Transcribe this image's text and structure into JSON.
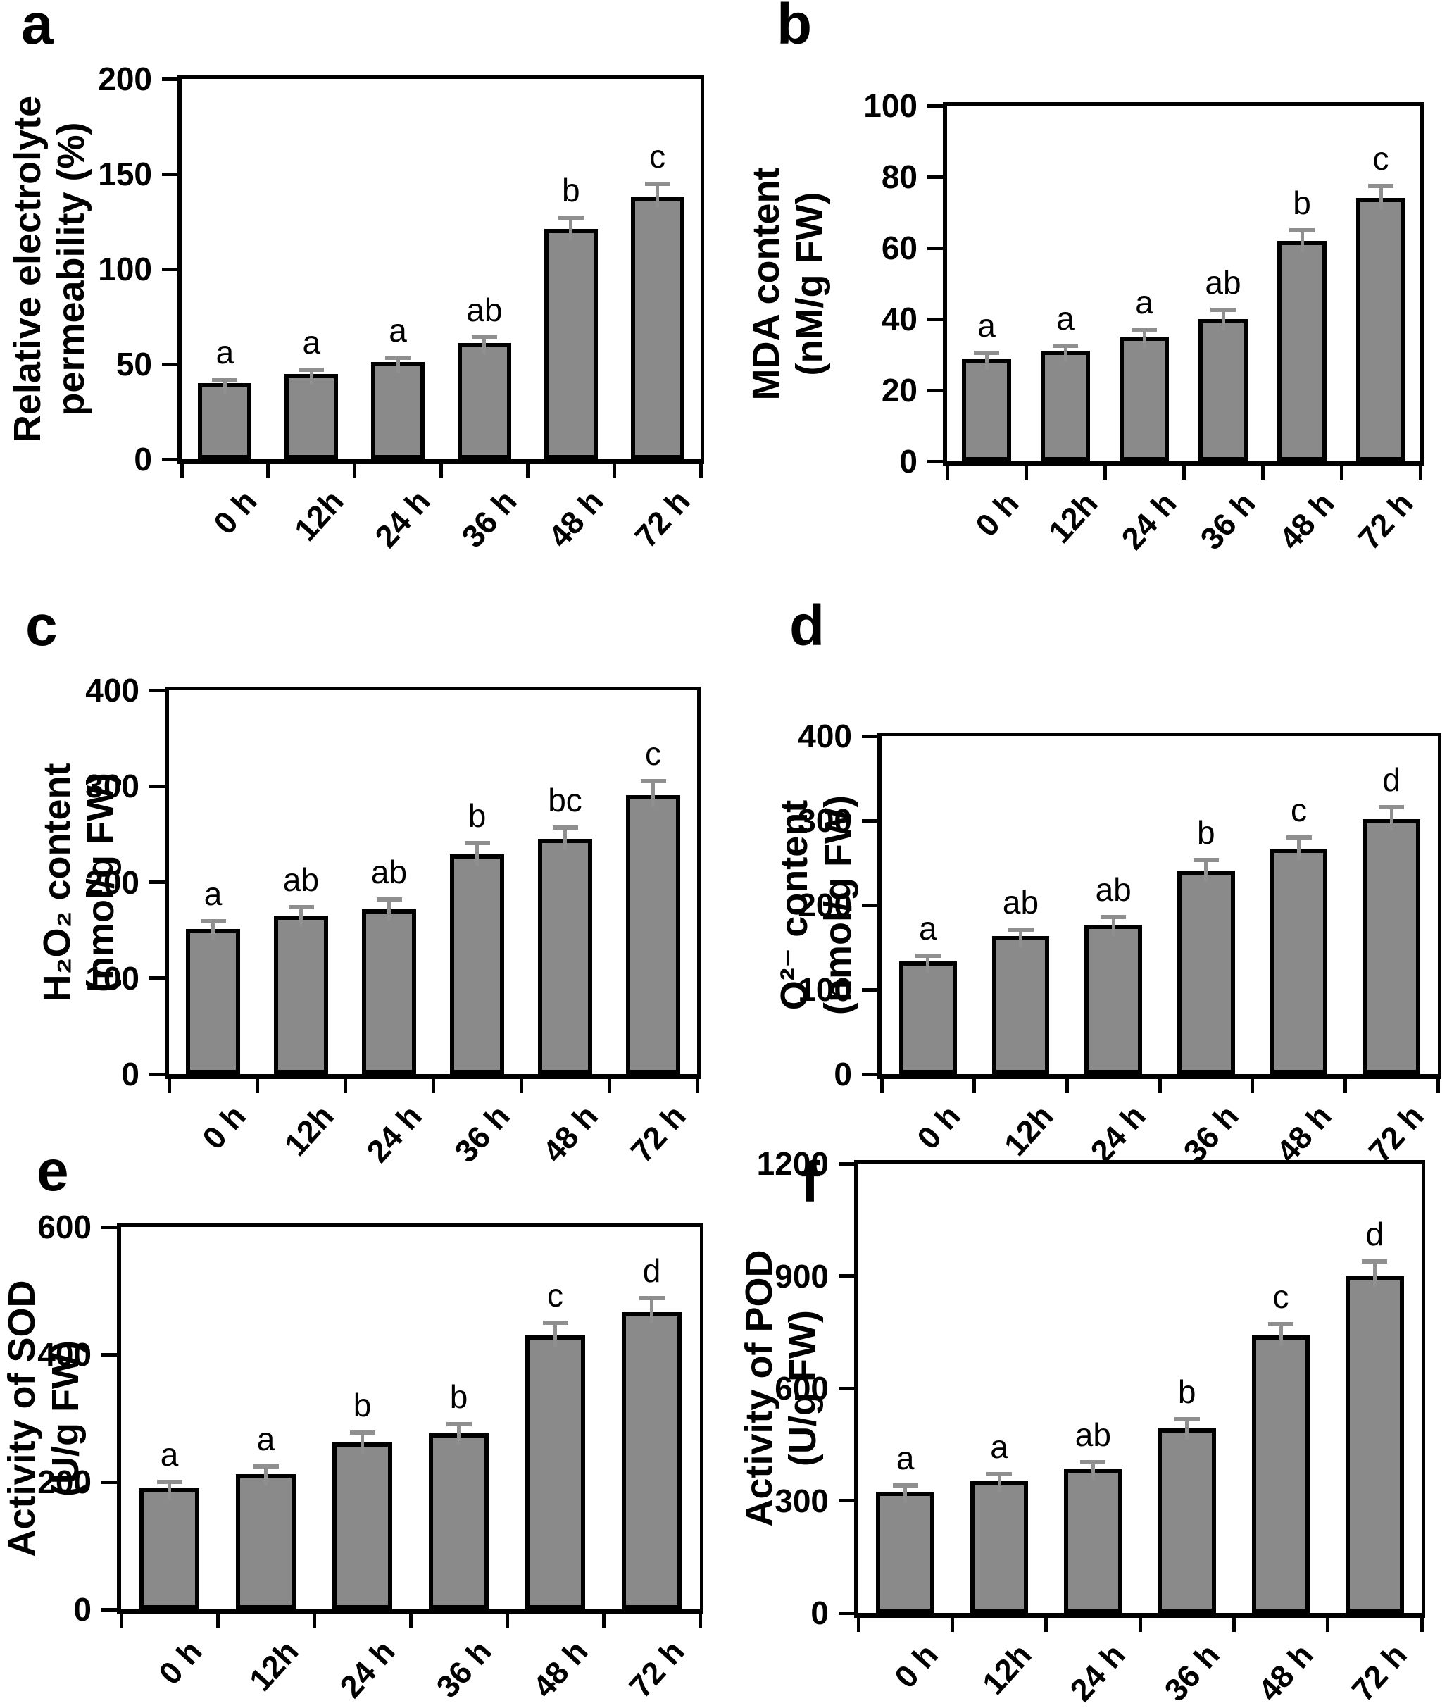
{
  "figure": {
    "background": "#ffffff",
    "bar_fill": "#8a8a8a",
    "bar_border": "#000000",
    "error_bar_color": "#8f8f8f",
    "axis_color": "#000000"
  },
  "categories": [
    "0 h",
    "12h",
    "24 h",
    "36 h",
    "48 h",
    "72 h"
  ],
  "chart_data": [
    {
      "id": "a",
      "type": "bar",
      "panel_label": "a",
      "ylabel": "Relative electrolyte permeability (%)",
      "ylabel_line1": "Relative electrolyte",
      "ylabel_line2": "permeability (%)",
      "xlabel": "",
      "categories": [
        "0 h",
        "12h",
        "24 h",
        "36 h",
        "48 h",
        "72 h"
      ],
      "values": [
        40,
        45,
        51,
        61,
        121,
        138
      ],
      "errors": [
        2,
        2,
        2.5,
        3,
        6,
        7
      ],
      "sig_letters": [
        "a",
        "a",
        "a",
        "ab",
        "b",
        "c"
      ],
      "yticks": [
        0,
        50,
        100,
        150,
        200
      ],
      "ylim": [
        0,
        200
      ],
      "grid": false,
      "legend": "none"
    },
    {
      "id": "b",
      "type": "bar",
      "panel_label": "b",
      "ylabel": "MDA content (nM/g FW)",
      "ylabel_line1": "MDA content",
      "ylabel_line2": "(nM/g FW)",
      "xlabel": "",
      "categories": [
        "0 h",
        "12h",
        "24 h",
        "36 h",
        "48 h",
        "72 h"
      ],
      "values": [
        29,
        31,
        35,
        40,
        62,
        74
      ],
      "errors": [
        1.5,
        1.5,
        2,
        2.5,
        3,
        3.5
      ],
      "sig_letters": [
        "a",
        "a",
        "a",
        "ab",
        "b",
        "c"
      ],
      "yticks": [
        0,
        20,
        40,
        60,
        80,
        100
      ],
      "ylim": [
        0,
        100
      ],
      "grid": false,
      "legend": "none"
    },
    {
      "id": "c",
      "type": "bar",
      "panel_label": "c",
      "ylabel": "H₂O₂ content (nmol/g FW)",
      "ylabel_line1": "H₂O₂ content",
      "ylabel_line2": "(nmol/g FW)",
      "xlabel": "",
      "categories": [
        "0 h",
        "12h",
        "24 h",
        "36 h",
        "48 h",
        "72 h"
      ],
      "values": [
        151,
        165,
        172,
        229,
        245,
        291
      ],
      "errors": [
        8,
        9,
        10,
        12,
        12,
        14
      ],
      "sig_letters": [
        "a",
        "ab",
        "ab",
        "b",
        "bc",
        "c"
      ],
      "yticks": [
        0,
        100,
        200,
        300,
        400
      ],
      "ylim": [
        0,
        400
      ],
      "grid": false,
      "legend": "none"
    },
    {
      "id": "d",
      "type": "bar",
      "panel_label": "d",
      "ylabel": "O²⁻ content (nmol/g FW)",
      "ylabel_line1": "O²⁻ content",
      "ylabel_line2": "(nmol/g FW)",
      "xlabel": "",
      "categories": [
        "0 h",
        "12h",
        "24 h",
        "36 h",
        "48 h",
        "72 h"
      ],
      "values": [
        133,
        163,
        177,
        241,
        267,
        302
      ],
      "errors": [
        7,
        8,
        9,
        12,
        13,
        14
      ],
      "sig_letters": [
        "a",
        "ab",
        "ab",
        "b",
        "c",
        "d"
      ],
      "yticks": [
        0,
        100,
        200,
        300,
        400
      ],
      "ylim": [
        0,
        400
      ],
      "grid": false,
      "legend": "none"
    },
    {
      "id": "e",
      "type": "bar",
      "panel_label": "e",
      "ylabel": "Activity of SOD (U/g FW)",
      "ylabel_line1": "Activity of SOD",
      "ylabel_line2": "(U/g FW)",
      "xlabel": "",
      "categories": [
        "0 h",
        "12h",
        "24 h",
        "36 h",
        "48 h",
        "72 h"
      ],
      "values": [
        190,
        212,
        262,
        276,
        430,
        466
      ],
      "errors": [
        10,
        12,
        15,
        15,
        20,
        22
      ],
      "sig_letters": [
        "a",
        "a",
        "b",
        "b",
        "c",
        "d"
      ],
      "yticks": [
        0,
        200,
        400,
        600
      ],
      "ylim": [
        0,
        600
      ],
      "grid": false,
      "legend": "none"
    },
    {
      "id": "f",
      "type": "bar",
      "panel_label": "f",
      "ylabel": "Activity of POD (U/g FW)",
      "ylabel_line1": "Activity of POD",
      "ylabel_line2": "(U/g FW)",
      "xlabel": "",
      "categories": [
        "0 h",
        "12h",
        "24 h",
        "36 h",
        "48 h",
        "72 h"
      ],
      "values": [
        323,
        352,
        385,
        492,
        742,
        900
      ],
      "errors": [
        18,
        18,
        18,
        25,
        30,
        38
      ],
      "sig_letters": [
        "a",
        "a",
        "ab",
        "b",
        "c",
        "d"
      ],
      "yticks": [
        0,
        300,
        600,
        900,
        1200
      ],
      "ylim": [
        0,
        1200
      ],
      "grid": false,
      "legend": "none"
    }
  ]
}
